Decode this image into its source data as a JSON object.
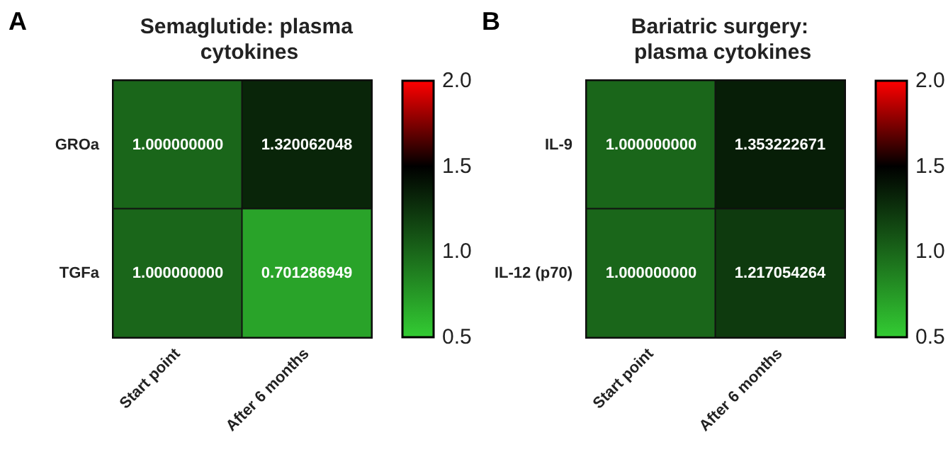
{
  "chart_data": [
    {
      "type": "heatmap",
      "title": "Semaglutide: plasma cytokines",
      "annotations": [
        "A"
      ],
      "categories": [
        "Start point",
        "After 6 months"
      ],
      "y_categories": [
        "GROa",
        "TGFa"
      ],
      "cells": [
        [
          1,
          1.320062048
        ],
        [
          1,
          0.701286949
        ]
      ],
      "cell_labels": [
        [
          "1.000000000",
          "1.320062048"
        ],
        [
          "1.000000000",
          "0.701286949"
        ]
      ],
      "clim": [
        0.5,
        2.0
      ],
      "cticks": [
        {
          "value": 0.5,
          "label": "0.5"
        },
        {
          "value": 1.0,
          "label": "1.0"
        },
        {
          "value": 1.5,
          "label": "1.5"
        },
        {
          "value": 2.0,
          "label": "2.0"
        }
      ]
    },
    {
      "type": "heatmap",
      "title": "Bariatric surgery: plasma cytokines",
      "annotations": [
        "B"
      ],
      "categories": [
        "Start point",
        "After 6 months"
      ],
      "y_categories": [
        "IL-9",
        "IL-12 (p70)"
      ],
      "cells": [
        [
          1,
          1.353222671
        ],
        [
          1,
          1.217054264
        ]
      ],
      "cell_labels": [
        [
          "1.000000000",
          "1.353222671"
        ],
        [
          "1.000000000",
          "1.217054264"
        ]
      ],
      "clim": [
        0.5,
        2.0
      ],
      "cticks": [
        {
          "value": 0.5,
          "label": "0.5"
        },
        {
          "value": 1.0,
          "label": "1.0"
        },
        {
          "value": 1.5,
          "label": "1.5"
        },
        {
          "value": 2.0,
          "label": "2.0"
        }
      ]
    }
  ]
}
